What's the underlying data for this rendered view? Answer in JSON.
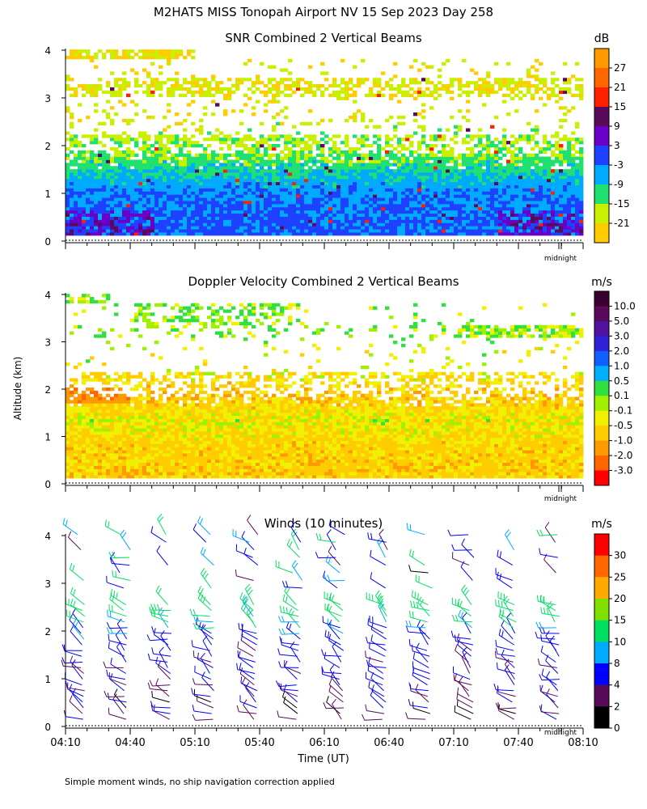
{
  "figure": {
    "title": "M2HATS MISS Tonopah Airport NV  15 Sep 2023 Day 258",
    "ylabel": "Altitude (km)",
    "xlabel": "Time (UT)",
    "footnote": "Simple moment winds, no ship navigation correction applied",
    "midnight_label": "midnight",
    "time_ticks": [
      "04:10",
      "04:40",
      "05:10",
      "05:40",
      "06:10",
      "06:40",
      "07:10",
      "07:40",
      "08:10"
    ],
    "altitude_ticks": [
      "0",
      "1",
      "2",
      "3",
      "4"
    ]
  },
  "chart_data": [
    {
      "type": "heatmap",
      "title": "SNR Combined 2 Vertical Beams",
      "xlabel": "Time (UT)",
      "ylabel": "Altitude (km)",
      "xlim": [
        "04:10",
        "08:10"
      ],
      "ylim": [
        0,
        4
      ],
      "colorbar": {
        "unit": "dB",
        "labels": [
          "27",
          "21",
          "15",
          "9",
          "3",
          "-3",
          "-9",
          "-15",
          "-21"
        ],
        "colors": [
          "#ff9900",
          "#ff6600",
          "#ff2000",
          "#5a0a5a",
          "#6a00c8",
          "#1e40ff",
          "#00aaff",
          "#20e070",
          "#c8f000",
          "#ffcc00"
        ]
      },
      "altitude_profile_km": [
        0.2,
        0.6,
        1.0,
        1.4,
        1.8,
        2.2,
        2.6,
        3.0,
        3.3,
        3.8
      ],
      "typical_value_dB": [
        -1,
        -2,
        -4,
        -9,
        -15,
        -17,
        -20,
        -20,
        -20,
        -21
      ]
    },
    {
      "type": "heatmap",
      "title": "Doppler Velocity Combined 2 Vertical Beams",
      "xlabel": "Time (UT)",
      "ylabel": "Altitude (km)",
      "xlim": [
        "04:10",
        "08:10"
      ],
      "ylim": [
        0,
        4
      ],
      "colorbar": {
        "unit": "m/s",
        "labels": [
          "10.0",
          "5.0",
          "3.0",
          "2.0",
          "1.0",
          "0.5",
          "0.1",
          "-0.1",
          "-0.5",
          "-1.0",
          "-2.0",
          "-3.0"
        ],
        "colors": [
          "#3a0030",
          "#5a0a5a",
          "#5010a0",
          "#3020d8",
          "#1060ff",
          "#00b0ff",
          "#30e040",
          "#a0f000",
          "#f0f000",
          "#ffcc00",
          "#ff9900",
          "#ff6600",
          "#ff0000"
        ]
      },
      "altitude_profile_km": [
        0.3,
        0.8,
        1.3,
        1.8,
        2.2,
        3.2,
        3.8
      ],
      "typical_value_ms": [
        -0.7,
        -0.6,
        -0.3,
        -0.8,
        -0.5,
        0.1,
        0.1
      ]
    },
    {
      "type": "wind_barbs",
      "title": "Winds (10 minutes)",
      "xlabel": "Time (UT)",
      "ylabel": "Altitude (km)",
      "xlim": [
        "04:10",
        "08:10"
      ],
      "ylim": [
        0,
        4
      ],
      "colorbar": {
        "unit": "m/s",
        "labels": [
          "30",
          "25",
          "20",
          "15",
          "10",
          "8",
          "4",
          "2",
          "0"
        ],
        "colors": [
          "#ff0000",
          "#ff6600",
          "#ffaa00",
          "#80e000",
          "#00e060",
          "#00aaff",
          "#0000ff",
          "#5a0a5a",
          "#000000"
        ]
      },
      "profile_times_minutes_after_0410": [
        8,
        28,
        48,
        68,
        88,
        108,
        128,
        148,
        168,
        188,
        208,
        228
      ],
      "altitude_km": [
        0.2,
        0.6,
        1.0,
        1.4,
        1.8,
        2.2,
        2.5,
        3.2,
        3.6,
        4.0
      ],
      "typical_speed_ms": [
        3,
        4,
        5,
        5,
        6,
        10,
        14,
        6,
        8,
        8
      ]
    }
  ]
}
